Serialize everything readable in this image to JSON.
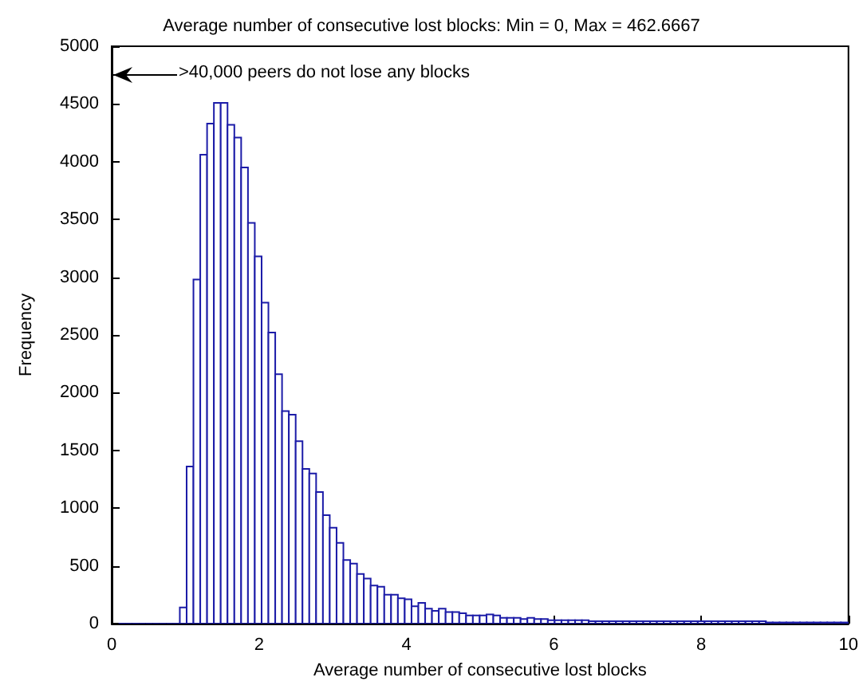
{
  "chart_data": {
    "type": "histogram",
    "title": "Average number of consecutive lost blocks: Min = 0, Max = 462.6667",
    "xlabel": "Average number of consecutive lost blocks",
    "ylabel": "Frequency",
    "annotations": [
      ">40,000 peers do not lose any blocks"
    ],
    "bins": [
      0,
      0.0925,
      0.185,
      0.2775,
      0.37,
      0.4625,
      0.555,
      0.6475,
      0.74,
      0.8325,
      0.925,
      1.0175,
      1.11,
      1.2025,
      1.295,
      1.3875,
      1.48,
      1.5725,
      1.665,
      1.7575,
      1.85,
      1.9425,
      2.035,
      2.1275,
      2.22,
      2.3125,
      2.405,
      2.4975,
      2.59,
      2.6825,
      2.775,
      2.8675,
      2.96,
      3.0525,
      3.145,
      3.2375,
      3.33,
      3.4225,
      3.515,
      3.6075,
      3.7,
      3.7925,
      3.885,
      3.9775,
      4.07,
      4.1625,
      4.255,
      4.3475,
      4.44,
      4.5325,
      4.625,
      4.7175,
      4.81,
      4.9025,
      4.995,
      5.0875,
      5.18,
      5.2725,
      5.365,
      5.4575,
      5.55,
      5.6425,
      5.735,
      5.8275,
      5.92,
      6.0125,
      6.105,
      6.1975,
      6.29,
      6.3825,
      6.475,
      6.5675,
      6.66,
      6.7525,
      6.845,
      6.9375,
      7.03,
      7.1225,
      7.215,
      7.3075,
      7.4,
      7.4925,
      7.585,
      7.6775,
      7.77,
      7.8625,
      7.955,
      8.0475,
      8.14,
      8.2325,
      8.325,
      8.4175,
      8.51,
      8.6025,
      8.695,
      8.7875,
      8.88,
      8.9725,
      9.065,
      9.1575,
      9.25,
      9.3425,
      9.435,
      9.5275,
      9.62,
      9.7125,
      9.805,
      9.8975,
      9.99
    ],
    "values": [
      null,
      0,
      0,
      0,
      0,
      0,
      0,
      0,
      0,
      0,
      140,
      1360,
      2980,
      4060,
      4330,
      4510,
      4510,
      4320,
      4210,
      3950,
      3470,
      3180,
      2780,
      2520,
      2160,
      1840,
      1810,
      1580,
      1340,
      1300,
      1140,
      940,
      830,
      700,
      550,
      520,
      430,
      390,
      330,
      320,
      250,
      250,
      220,
      210,
      150,
      180,
      130,
      110,
      130,
      100,
      100,
      90,
      70,
      70,
      70,
      80,
      70,
      50,
      50,
      50,
      40,
      50,
      40,
      40,
      30,
      30,
      30,
      30,
      30,
      30,
      20,
      20,
      20,
      20,
      20,
      20,
      20,
      20,
      20,
      20,
      20,
      20,
      20,
      20,
      20,
      20,
      20,
      20,
      20,
      20,
      20,
      20,
      20,
      20,
      20,
      20,
      10,
      10,
      10,
      10,
      10,
      10,
      10,
      10,
      10,
      10,
      10,
      10
    ],
    "color": "#1c1ca8",
    "xlim": [
      0,
      10
    ],
    "xticks": [
      0,
      2,
      4,
      6,
      8,
      10
    ],
    "ylim": [
      0,
      5000
    ],
    "yticks": [
      0,
      500,
      1000,
      1500,
      2000,
      2500,
      3000,
      3500,
      4000,
      4500,
      5000
    ],
    "grid": false
  }
}
